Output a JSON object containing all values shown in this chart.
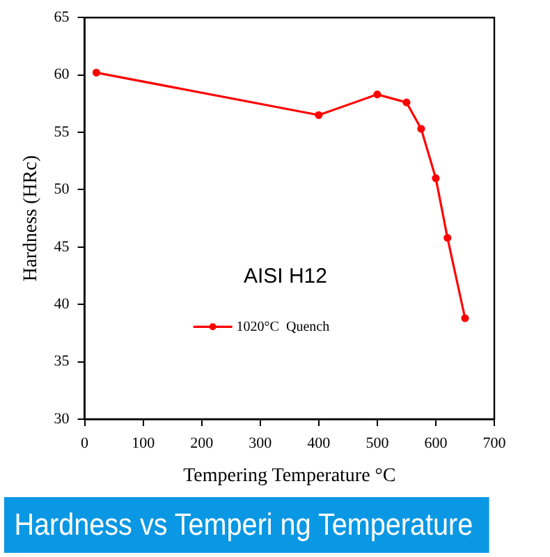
{
  "chart_data": {
    "type": "line",
    "title": "Hardness vs Temperi ng Temperature",
    "xlabel": "Tempering Temperature °C",
    "ylabel": "Hardness (HRc)",
    "annotations": [
      "AISI H12"
    ],
    "xlim": [
      0,
      700
    ],
    "xticks": [
      0,
      100,
      200,
      300,
      400,
      500,
      600,
      700
    ],
    "ylim": [
      30,
      65
    ],
    "yticks": [
      30,
      35,
      40,
      45,
      50,
      55,
      60,
      65
    ],
    "series": [
      {
        "name": "1020°C  Quench",
        "color": "#ff0000",
        "x": [
          20,
          400,
          500,
          550,
          575,
          600,
          620,
          650
        ],
        "values": [
          60.2,
          56.5,
          58.3,
          57.6,
          55.3,
          51.0,
          45.8,
          38.8
        ]
      }
    ],
    "marker": "circle",
    "line_style": "solid",
    "grid": false,
    "legend": "bottom left"
  }
}
